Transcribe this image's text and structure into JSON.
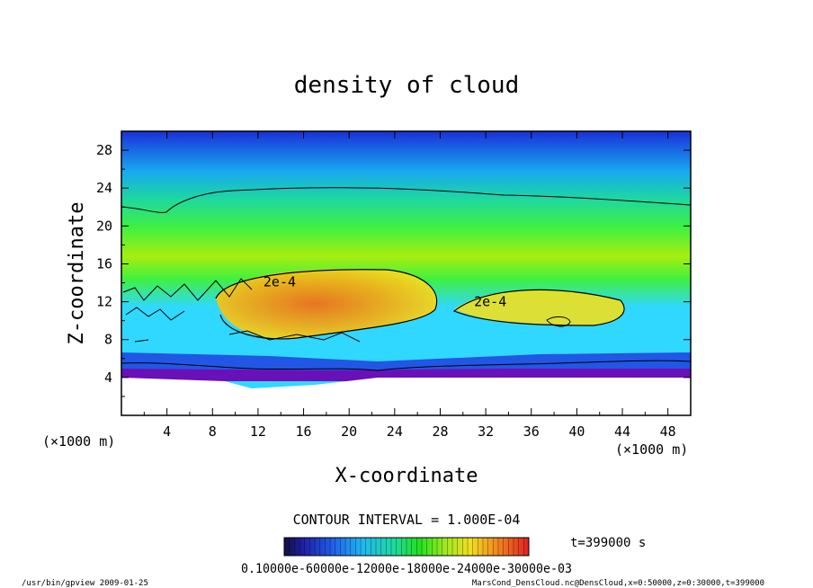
{
  "chart_data": {
    "type": "heatmap",
    "title": "density of cloud",
    "xlabel": "X-coordinate",
    "ylabel": "Z-coordinate",
    "x_unit": "(×1000 m)",
    "y_unit": "(×1000 m)",
    "xlim": [
      0,
      50
    ],
    "ylim": [
      0,
      30
    ],
    "x_ticks": [
      4,
      8,
      12,
      16,
      20,
      24,
      28,
      32,
      36,
      40,
      44,
      48
    ],
    "y_ticks": [
      4,
      8,
      12,
      16,
      20,
      24,
      28
    ],
    "contour_interval_text": "CONTOUR INTERVAL = 1.000E-04",
    "contour_labels": [
      {
        "text": "2e-4",
        "x": 13.9,
        "z": 14.1
      },
      {
        "text": "2e-4",
        "x": 32.4,
        "z": 12.0
      }
    ],
    "time_text": "t=399000 s",
    "colorbar_text": "0.10000e-60000e-12000e-18000e-24000e-30000e-03",
    "colorbar_range": [
      0,
      0.0003
    ],
    "colors": {
      "low": "#2222d0",
      "mid": "#22e010",
      "high": "#f06018"
    }
  },
  "footer": {
    "left": "/usr/bin/gpview   2009-01-25",
    "right": "MarsCond_DensCloud.nc@DensCloud,x=0:50000,z=0:30000,t=399000"
  }
}
